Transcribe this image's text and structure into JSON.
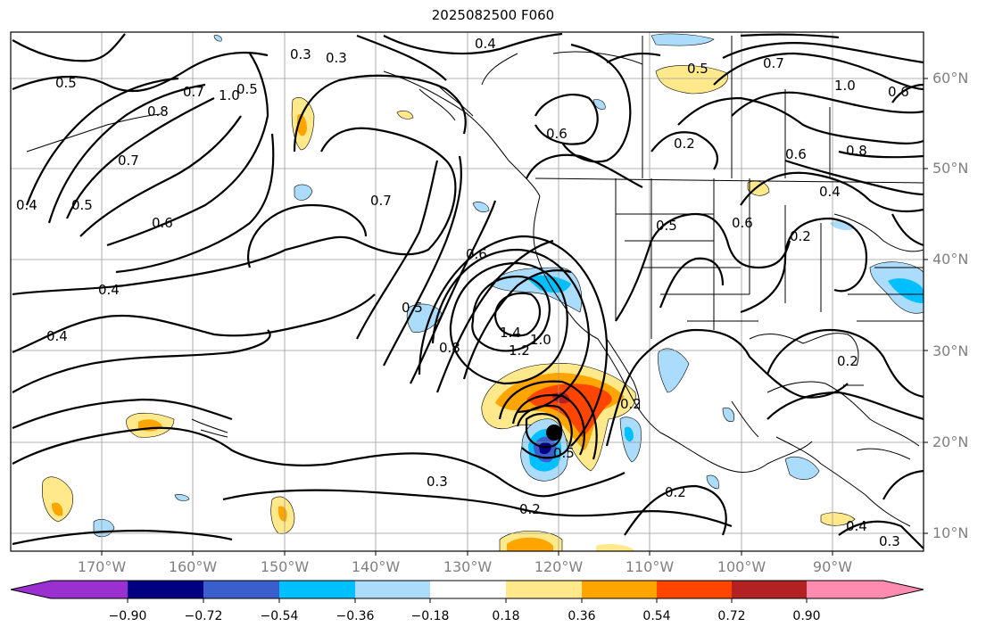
{
  "title": "2025082500 F060",
  "lat_labels": [
    "60°N",
    "50°N",
    "40°N",
    "30°N",
    "20°N",
    "10°N"
  ],
  "lon_labels": [
    "170°W",
    "160°W",
    "150°W",
    "140°W",
    "130°W",
    "120°W",
    "110°W",
    "100°W",
    "90°W"
  ],
  "colorbar": {
    "ticks": [
      "−0.90",
      "−0.72",
      "−0.54",
      "−0.36",
      "−0.18",
      "0.18",
      "0.36",
      "0.54",
      "0.72",
      "0.90"
    ],
    "colors": [
      "#9b30d0",
      "#000080",
      "#3a5fcd",
      "#00bfff",
      "#abdcfc",
      "#ffffff",
      "#ffe98a",
      "#ffa500",
      "#ff4500",
      "#b22222",
      "#ff8cb0"
    ]
  },
  "contour_labels": [
    "0.3",
    "0.3",
    "0.4",
    "0.5",
    "0.5",
    "0.7",
    "0.8",
    "0.7",
    "1.0",
    "0.4",
    "0.5",
    "0.6",
    "0.4",
    "0.4",
    "0.7",
    "0.6",
    "0.2",
    "0.5",
    "0.6",
    "0.7",
    "1.0",
    "0.8",
    "0.6",
    "0.4",
    "0.2",
    "0.5",
    "0.6",
    "0.5",
    "0.6",
    "0.8",
    "1.4",
    "1.2",
    "1.0",
    "0.2",
    "0.3",
    "0.2",
    "0.2",
    "0.4",
    "0.2",
    "0.3",
    "0.5"
  ],
  "storm_marker": "filled-circle"
}
